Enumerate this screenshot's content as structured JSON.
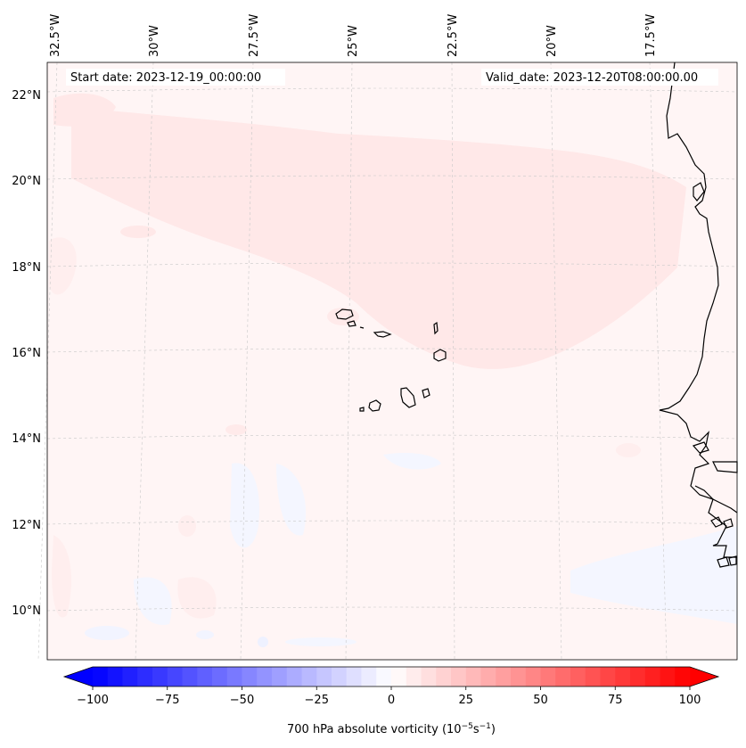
{
  "header": {
    "start_date": "Start date: 2023-12-19_00:00:00",
    "valid_date": "Valid_date: 2023-12-20T08:00:00.00"
  },
  "axes": {
    "lon_ticks": [
      "32.5°W",
      "30°W",
      "27.5°W",
      "25°W",
      "22.5°W",
      "20°W",
      "17.5°W"
    ],
    "lat_ticks": [
      "22°N",
      "20°N",
      "18°N",
      "16°N",
      "14°N",
      "12°N",
      "10°N"
    ]
  },
  "colorbar": {
    "ticks": [
      "−100",
      "−75",
      "−50",
      "−25",
      "0",
      "25",
      "50",
      "75",
      "100"
    ],
    "label_prefix": "700 hPa absolute vorticity (10",
    "label_exp1": "−5",
    "label_mid": "s",
    "label_exp2": "−1",
    "label_suffix": ")",
    "min": -100,
    "max": 100,
    "levels": 40,
    "min_color": "#0000ff",
    "zero_color": "#ffffff",
    "max_color": "#ff0000"
  },
  "colors": {
    "background_field": "#fff5f5",
    "positive_band": "#ffe8e8",
    "negative_patch": "#f4f6ff",
    "coastline": "#000000",
    "gridline": "#c8c8c8"
  }
}
